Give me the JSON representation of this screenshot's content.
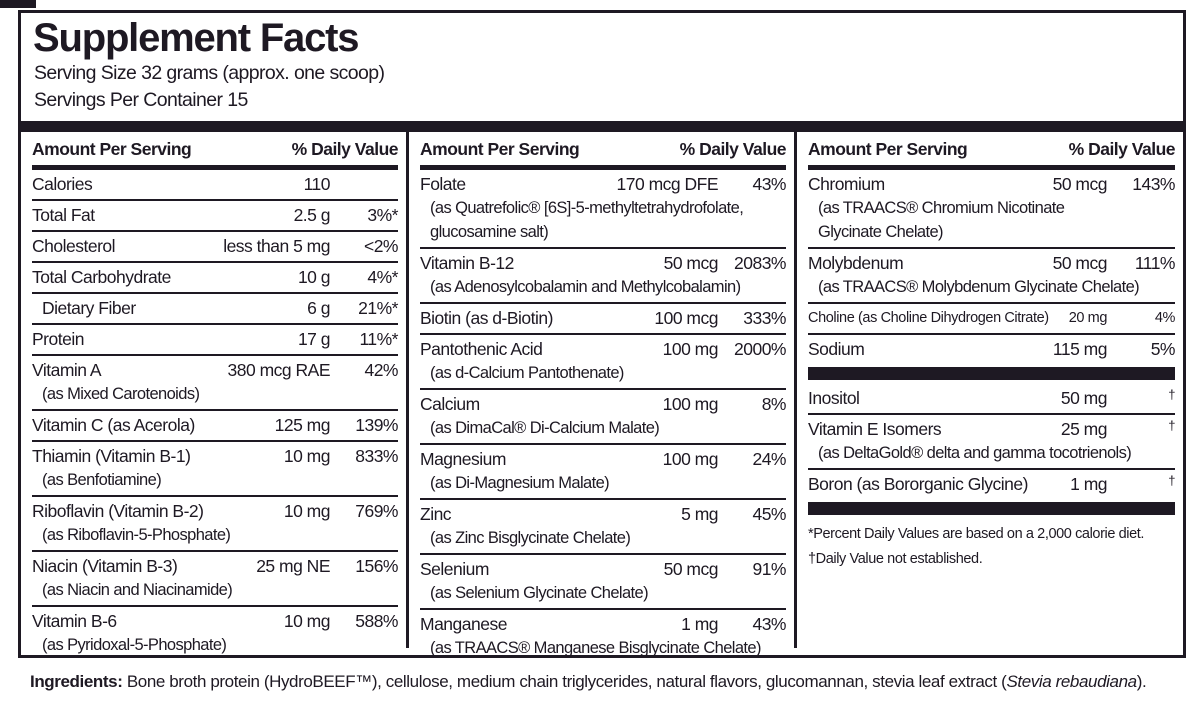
{
  "colors": {
    "ink": "#1e1923",
    "background": "#ffffff"
  },
  "title": "Supplement Facts",
  "serving": {
    "size": "Serving Size 32 grams (approx. one scoop)",
    "per_container": "Servings Per Container 15"
  },
  "columns": [
    {
      "header": {
        "amount": "Amount Per Serving",
        "dv": "% Daily Value"
      },
      "rows": [
        {
          "name": "Calories",
          "amount": "110",
          "dv": ""
        },
        {
          "name": "Total Fat",
          "amount": "2.5 g",
          "dv": "3%*"
        },
        {
          "name": "Cholesterol",
          "amount": "less than 5 mg",
          "dv": "<2%"
        },
        {
          "name": "Total Carbohydrate",
          "amount": "10 g",
          "dv": "4%*"
        },
        {
          "name": "Dietary Fiber",
          "amount": "6 g",
          "dv": "21%*",
          "indent": true
        },
        {
          "name": "Protein",
          "amount": "17 g",
          "dv": "11%*"
        },
        {
          "name": "Vitamin A",
          "amount": "380 mcg RAE",
          "dv": "42%",
          "subs": [
            "(as Mixed Carotenoids)"
          ]
        },
        {
          "name": "Vitamin C (as Acerola)",
          "amount": "125 mg",
          "dv": "139%"
        },
        {
          "name": "Thiamin (Vitamin B-1)",
          "amount": "10 mg",
          "dv": "833%",
          "subs": [
            "(as Benfotiamine)"
          ]
        },
        {
          "name": "Riboflavin (Vitamin B-2)",
          "amount": "10 mg",
          "dv": "769%",
          "subs": [
            "(as Riboflavin-5-Phosphate)"
          ]
        },
        {
          "name": "Niacin (Vitamin B-3)",
          "amount": "25 mg NE",
          "dv": "156%",
          "subs": [
            "(as Niacin and Niacinamide)"
          ]
        },
        {
          "name": "Vitamin B-6",
          "amount": "10 mg",
          "dv": "588%",
          "subs": [
            "(as Pyridoxal-5-Phosphate)"
          ]
        }
      ]
    },
    {
      "header": {
        "amount": "Amount Per Serving",
        "dv": "% Daily Value"
      },
      "rows": [
        {
          "name": "Folate",
          "amount": "170 mcg DFE",
          "dv": "43%",
          "subs": [
            "(as Quatrefolic® [6S]-5-methyltetrahydrofolate,",
            "glucosamine salt)"
          ]
        },
        {
          "name": "Vitamin B-12",
          "amount": "50 mcg",
          "dv": "2083%",
          "subs": [
            "(as Adenosylcobalamin and Methylcobalamin)"
          ]
        },
        {
          "name": "Biotin (as d-Biotin)",
          "amount": "100 mcg",
          "dv": "333%"
        },
        {
          "name": "Pantothenic Acid",
          "amount": "100 mg",
          "dv": "2000%",
          "subs": [
            "(as d-Calcium Pantothenate)"
          ]
        },
        {
          "name": "Calcium",
          "amount": "100 mg",
          "dv": "8%",
          "subs": [
            "(as DimaCal® Di-Calcium Malate)"
          ]
        },
        {
          "name": "Magnesium",
          "amount": "100 mg",
          "dv": "24%",
          "subs": [
            "(as Di-Magnesium Malate)"
          ]
        },
        {
          "name": "Zinc",
          "amount": "5 mg",
          "dv": "45%",
          "subs": [
            "(as Zinc Bisglycinate Chelate)"
          ]
        },
        {
          "name": "Selenium",
          "amount": "50 mcg",
          "dv": "91%",
          "subs": [
            "(as Selenium Glycinate Chelate)"
          ]
        },
        {
          "name": "Manganese",
          "amount": "1 mg",
          "dv": "43%",
          "subs": [
            "(as TRAACS® Manganese Bisglycinate Chelate)"
          ]
        }
      ]
    },
    {
      "header": {
        "amount": "Amount Per Serving",
        "dv": "% Daily Value"
      },
      "rows": [
        {
          "name": "Chromium",
          "amount": "50 mcg",
          "dv": "143%",
          "subs": [
            "(as TRAACS® Chromium Nicotinate",
            "Glycinate Chelate)"
          ]
        },
        {
          "name": "Molybdenum",
          "amount": "50 mcg",
          "dv": "111%",
          "subs": [
            "(as TRAACS® Molybdenum Glycinate Chelate)"
          ]
        },
        {
          "name": "Choline (as Choline Dihydrogen Citrate)",
          "amount": "20 mg",
          "dv": "4%",
          "small": true
        },
        {
          "name": "Sodium",
          "amount": "115 mg",
          "dv": "5%"
        },
        {
          "bar": true
        },
        {
          "name": "Inositol",
          "amount": "50 mg",
          "dv": "†"
        },
        {
          "name": "Vitamin E Isomers",
          "amount": "25 mg",
          "dv": "†",
          "subs": [
            "(as DeltaGold® delta and gamma tocotrienols)"
          ]
        },
        {
          "name": "Boron (as Bororganic Glycine)",
          "amount": "1 mg",
          "dv": "†"
        },
        {
          "bar": true
        }
      ]
    }
  ],
  "footnotes": [
    "*Percent Daily Values are based on a 2,000 calorie diet.",
    "†Daily Value not established."
  ],
  "ingredients": {
    "label": "Ingredients:",
    "text_before_italic": " Bone broth protein (HydroBEEF™), cellulose, medium chain triglycerides, natural flavors, glucomannan, stevia leaf extract (",
    "italic": "Stevia rebaudiana",
    "text_after_italic": ")."
  }
}
